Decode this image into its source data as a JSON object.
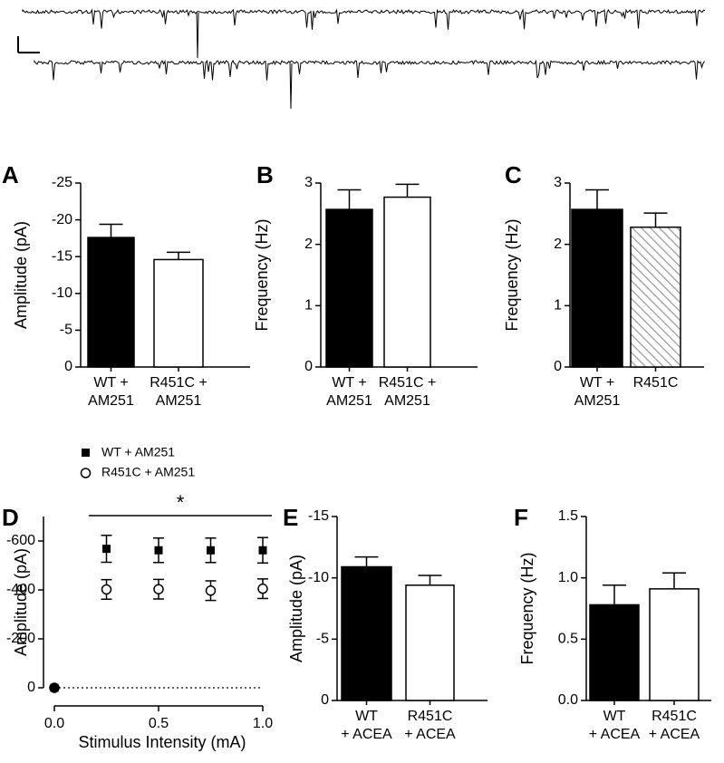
{
  "traces": {
    "rows": 2,
    "scale_bar": true
  },
  "chart_data": [
    {
      "panel": "A",
      "type": "bar",
      "ylabel": "Amplitude (pA)",
      "ylim": [
        0,
        -25
      ],
      "yticks": [
        "-25",
        "-20",
        "-15",
        "-10",
        "-5",
        "0"
      ],
      "ytick_values": [
        -25,
        -20,
        -15,
        -10,
        -5,
        0
      ],
      "categories": [
        [
          "WT +",
          "AM251"
        ],
        [
          "R451C +",
          "AM251"
        ]
      ],
      "values": [
        -17.6,
        -14.6
      ],
      "errors": [
        1.8,
        1.0
      ],
      "fills": [
        "solid",
        "open"
      ]
    },
    {
      "panel": "B",
      "type": "bar",
      "ylabel": "Frequency (Hz)",
      "ylim": [
        0,
        3
      ],
      "yticks": [
        "3",
        "2",
        "1",
        "0"
      ],
      "ytick_values": [
        3,
        2,
        1,
        0
      ],
      "categories": [
        [
          "WT +",
          "AM251"
        ],
        [
          "R451C +",
          "AM251"
        ]
      ],
      "values": [
        2.57,
        2.77
      ],
      "errors": [
        0.32,
        0.21
      ],
      "fills": [
        "solid",
        "open"
      ]
    },
    {
      "panel": "C",
      "type": "bar",
      "ylabel": "Frequency (Hz)",
      "ylim": [
        0,
        3
      ],
      "yticks": [
        "3",
        "2",
        "1",
        "0"
      ],
      "ytick_values": [
        3,
        2,
        1,
        0
      ],
      "categories": [
        [
          "WT +",
          "AM251"
        ],
        [
          "R451C"
        ]
      ],
      "values": [
        2.57,
        2.28
      ],
      "errors": [
        0.32,
        0.23
      ],
      "fills": [
        "solid",
        "hatched"
      ]
    },
    {
      "panel": "D",
      "type": "scatter",
      "ylabel": "Amplitude (pA)",
      "xlabel": "Stimulus Intensity (mA)",
      "xlim": [
        0,
        1.0
      ],
      "ylim": [
        0,
        -700
      ],
      "xticks": [
        "0.0",
        "0.5",
        "1.0"
      ],
      "xtick_values": [
        0,
        0.5,
        1.0
      ],
      "yticks": [
        "-600",
        "-400",
        "-200",
        "0"
      ],
      "ytick_values": [
        -600,
        -400,
        -200,
        0
      ],
      "series": [
        {
          "name": "WT + AM251",
          "marker": "square",
          "x": [
            0,
            0.25,
            0.5,
            0.75,
            1.0
          ],
          "y": [
            0,
            -568,
            -562,
            -562,
            -562
          ],
          "err": [
            0,
            55,
            50,
            50,
            52
          ]
        },
        {
          "name": "R451C + AM251",
          "marker": "circle",
          "x": [
            0,
            0.25,
            0.5,
            0.75,
            1.0
          ],
          "y": [
            0,
            -402,
            -403,
            -397,
            -405
          ],
          "err": [
            0,
            40,
            40,
            40,
            40
          ]
        }
      ],
      "significance": {
        "label": "*",
        "x_range": [
          0.2,
          1.0
        ]
      },
      "baseline": "dotted at 0"
    },
    {
      "panel": "E",
      "type": "bar",
      "ylabel": "Amplitude (pA)",
      "ylim": [
        0,
        -15
      ],
      "yticks": [
        "-15",
        "-10",
        "-5",
        "0"
      ],
      "ytick_values": [
        -15,
        -10,
        -5,
        0
      ],
      "categories": [
        [
          "WT",
          "+ ACEA"
        ],
        [
          "R451C",
          "+ ACEA"
        ]
      ],
      "values": [
        -10.9,
        -9.4
      ],
      "errors": [
        0.8,
        0.8
      ],
      "fills": [
        "solid",
        "open"
      ]
    },
    {
      "panel": "F",
      "type": "bar",
      "ylabel": "Frequency (Hz)",
      "ylim": [
        0,
        1.5
      ],
      "yticks": [
        "1.5",
        "1.0",
        "0.5",
        "0.0"
      ],
      "ytick_values": [
        1.5,
        1.0,
        0.5,
        0
      ],
      "categories": [
        [
          "WT",
          "+ ACEA"
        ],
        [
          "R451C",
          "+ ACEA"
        ]
      ],
      "values": [
        0.78,
        0.91
      ],
      "errors": [
        0.16,
        0.13
      ],
      "fills": [
        "solid",
        "open"
      ]
    }
  ]
}
